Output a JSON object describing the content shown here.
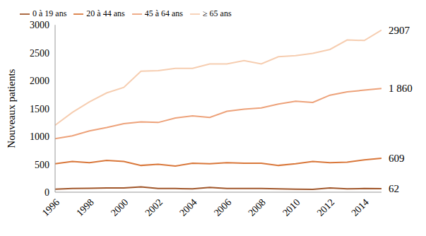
{
  "chart_data": {
    "type": "line",
    "y_label": "Nouveaux patients",
    "x": [
      1996,
      1997,
      1998,
      1999,
      2000,
      2001,
      2002,
      2003,
      2004,
      2005,
      2006,
      2007,
      2008,
      2009,
      2010,
      2011,
      2012,
      2013,
      2014,
      2015
    ],
    "xlim": [
      1996,
      2015
    ],
    "xticks": [
      1996,
      1998,
      2000,
      2002,
      2004,
      2006,
      2008,
      2010,
      2012,
      2014
    ],
    "ylim": [
      0,
      3000
    ],
    "yticks": [
      0,
      500,
      1000,
      1500,
      2000,
      2500,
      3000
    ],
    "grid": false,
    "legend": "top",
    "series": [
      {
        "name": "0 à 19 ans",
        "color": "#a0562a",
        "values": [
          55,
          65,
          70,
          75,
          75,
          95,
          65,
          65,
          60,
          85,
          65,
          65,
          65,
          60,
          55,
          50,
          75,
          60,
          65,
          62
        ],
        "value_labels": [
          null,
          null,
          null,
          null,
          null,
          null,
          null,
          null,
          null,
          null,
          null,
          null,
          null,
          null,
          null,
          null,
          null,
          null,
          null,
          "62"
        ]
      },
      {
        "name": "20 à 44 ans",
        "color": "#d9773a",
        "values": [
          510,
          550,
          530,
          570,
          550,
          480,
          500,
          470,
          520,
          510,
          530,
          520,
          520,
          480,
          510,
          550,
          530,
          540,
          580,
          609
        ],
        "value_labels": [
          null,
          null,
          null,
          null,
          null,
          null,
          null,
          null,
          null,
          null,
          null,
          null,
          null,
          null,
          null,
          null,
          null,
          null,
          null,
          "609"
        ]
      },
      {
        "name": "45 à 64 ans",
        "color": "#eda27a",
        "values": [
          960,
          1010,
          1100,
          1160,
          1230,
          1260,
          1250,
          1330,
          1370,
          1340,
          1450,
          1490,
          1510,
          1580,
          1630,
          1610,
          1740,
          1800,
          1830,
          1860
        ],
        "value_labels": [
          null,
          null,
          null,
          null,
          null,
          null,
          null,
          null,
          null,
          null,
          null,
          null,
          null,
          null,
          null,
          null,
          null,
          null,
          null,
          "1 860"
        ]
      },
      {
        "name": "≥ 65 ans",
        "color": "#f6cdb0",
        "values": [
          1200,
          1430,
          1620,
          1780,
          1880,
          2170,
          2180,
          2220,
          2220,
          2300,
          2300,
          2360,
          2300,
          2430,
          2450,
          2490,
          2560,
          2730,
          2720,
          2907
        ],
        "value_labels": [
          null,
          null,
          null,
          null,
          null,
          null,
          null,
          null,
          null,
          null,
          null,
          null,
          null,
          null,
          null,
          null,
          null,
          null,
          null,
          "2907"
        ]
      }
    ]
  }
}
